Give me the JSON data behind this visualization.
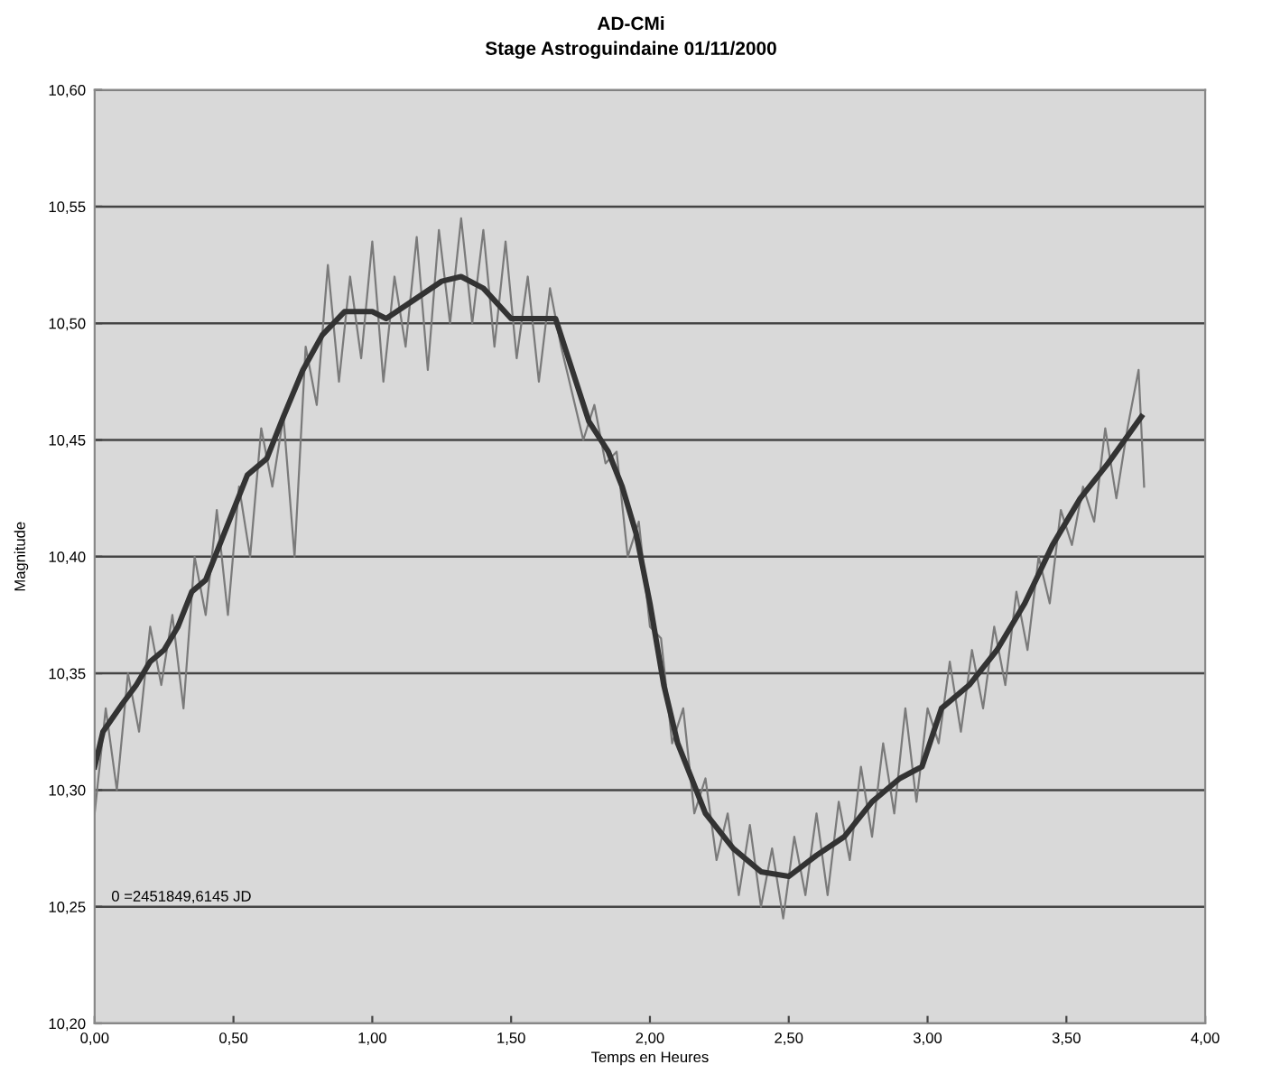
{
  "chart_data": {
    "type": "line",
    "title": "AD-CMi",
    "subtitle": "Stage Astroguindaine 01/11/2000",
    "xlabel": "Temps en Heures",
    "ylabel": "Magnitude",
    "annotations": [
      "0 =2451849,6145 JD"
    ],
    "xlim": [
      0,
      4
    ],
    "ylim": [
      10.2,
      10.6
    ],
    "xticks": [
      {
        "value": 0,
        "label": "0,00"
      },
      {
        "value": 0.5,
        "label": "0,50"
      },
      {
        "value": 1,
        "label": "1,00"
      },
      {
        "value": 1.5,
        "label": "1,50"
      },
      {
        "value": 2,
        "label": "2,00"
      },
      {
        "value": 2.5,
        "label": "2,50"
      },
      {
        "value": 3,
        "label": "3,00"
      },
      {
        "value": 3.5,
        "label": "3,50"
      },
      {
        "value": 4,
        "label": "4,00"
      }
    ],
    "yticks": [
      {
        "value": 10.2,
        "label": "10,20"
      },
      {
        "value": 10.25,
        "label": "10,25"
      },
      {
        "value": 10.3,
        "label": "10,30"
      },
      {
        "value": 10.35,
        "label": "10,35"
      },
      {
        "value": 10.4,
        "label": "10,40"
      },
      {
        "value": 10.45,
        "label": "10,45"
      },
      {
        "value": 10.5,
        "label": "10,50"
      },
      {
        "value": 10.55,
        "label": "10,55"
      },
      {
        "value": 10.6,
        "label": "10,60"
      }
    ],
    "grid": "y",
    "marker": "none",
    "line_style": "solid",
    "series": [
      {
        "color": "#7a7a7a",
        "x": [
          0.0,
          0.04,
          0.08,
          0.12,
          0.16,
          0.2,
          0.24,
          0.28,
          0.32,
          0.36,
          0.4,
          0.44,
          0.48,
          0.52,
          0.56,
          0.6,
          0.64,
          0.68,
          0.72,
          0.76,
          0.8,
          0.84,
          0.88,
          0.92,
          0.96,
          1.0,
          1.04,
          1.08,
          1.12,
          1.16,
          1.2,
          1.24,
          1.28,
          1.32,
          1.36,
          1.4,
          1.44,
          1.48,
          1.52,
          1.56,
          1.6,
          1.64,
          1.68,
          1.72,
          1.76,
          1.8,
          1.84,
          1.88,
          1.92,
          1.96,
          2.0,
          2.04,
          2.08,
          2.12,
          2.16,
          2.2,
          2.24,
          2.28,
          2.32,
          2.36,
          2.4,
          2.44,
          2.48,
          2.52,
          2.56,
          2.6,
          2.64,
          2.68,
          2.72,
          2.76,
          2.8,
          2.84,
          2.88,
          2.92,
          2.96,
          3.0,
          3.04,
          3.08,
          3.12,
          3.16,
          3.2,
          3.24,
          3.28,
          3.32,
          3.36,
          3.4,
          3.44,
          3.48,
          3.52,
          3.56,
          3.6,
          3.64,
          3.68,
          3.72,
          3.76,
          3.78
        ],
        "values": [
          10.29,
          10.335,
          10.3,
          10.35,
          10.325,
          10.37,
          10.345,
          10.375,
          10.335,
          10.4,
          10.375,
          10.42,
          10.375,
          10.43,
          10.4,
          10.455,
          10.43,
          10.46,
          10.4,
          10.49,
          10.465,
          10.525,
          10.475,
          10.52,
          10.485,
          10.535,
          10.475,
          10.52,
          10.49,
          10.537,
          10.48,
          10.54,
          10.5,
          10.545,
          10.5,
          10.54,
          10.49,
          10.535,
          10.485,
          10.52,
          10.475,
          10.515,
          10.49,
          10.47,
          10.45,
          10.465,
          10.44,
          10.445,
          10.4,
          10.415,
          10.37,
          10.365,
          10.32,
          10.335,
          10.29,
          10.305,
          10.27,
          10.29,
          10.255,
          10.285,
          10.25,
          10.275,
          10.245,
          10.28,
          10.255,
          10.29,
          10.255,
          10.295,
          10.27,
          10.31,
          10.28,
          10.32,
          10.29,
          10.335,
          10.295,
          10.335,
          10.32,
          10.355,
          10.325,
          10.36,
          10.335,
          10.37,
          10.345,
          10.385,
          10.36,
          10.4,
          10.38,
          10.42,
          10.405,
          10.43,
          10.415,
          10.455,
          10.425,
          10.455,
          10.48,
          10.43
        ]
      },
      {
        "color": "#333333",
        "x": [
          0.0,
          0.03,
          0.1,
          0.15,
          0.2,
          0.25,
          0.3,
          0.35,
          0.4,
          0.45,
          0.5,
          0.55,
          0.62,
          0.68,
          0.75,
          0.82,
          0.9,
          1.0,
          1.05,
          1.15,
          1.25,
          1.32,
          1.4,
          1.5,
          1.6,
          1.66,
          1.72,
          1.78,
          1.85,
          1.9,
          1.95,
          2.0,
          2.05,
          2.1,
          2.15,
          2.2,
          2.3,
          2.4,
          2.5,
          2.6,
          2.7,
          2.8,
          2.9,
          2.98,
          3.05,
          3.15,
          3.25,
          3.35,
          3.45,
          3.55,
          3.65,
          3.77
        ],
        "values": [
          10.31,
          10.325,
          10.337,
          10.345,
          10.355,
          10.36,
          10.37,
          10.385,
          10.39,
          10.405,
          10.42,
          10.435,
          10.442,
          10.46,
          10.48,
          10.495,
          10.505,
          10.505,
          10.502,
          10.51,
          10.518,
          10.52,
          10.515,
          10.502,
          10.502,
          10.502,
          10.48,
          10.458,
          10.445,
          10.43,
          10.41,
          10.38,
          10.345,
          10.32,
          10.305,
          10.29,
          10.275,
          10.265,
          10.263,
          10.272,
          10.28,
          10.295,
          10.305,
          10.31,
          10.335,
          10.345,
          10.36,
          10.38,
          10.405,
          10.425,
          10.44,
          10.46
        ]
      }
    ]
  }
}
